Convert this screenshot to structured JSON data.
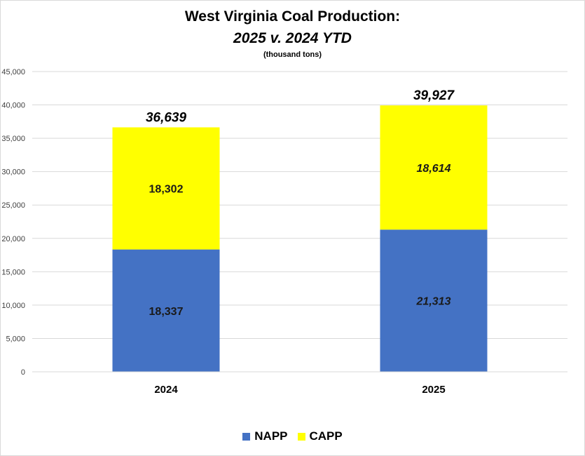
{
  "chart_data": {
    "type": "bar",
    "stacked": true,
    "title": "West Virginia Coal Production:",
    "title_line2": "2025 v. 2024 YTD",
    "subtitle": "(thousand tons)",
    "categories": [
      "2024",
      "2025"
    ],
    "series": [
      {
        "name": "NAPP",
        "color": "#4472c4",
        "values": [
          18337,
          21313
        ],
        "labels": [
          "18,337",
          "21,313"
        ]
      },
      {
        "name": "CAPP",
        "color": "#ffff00",
        "values": [
          18302,
          18614
        ],
        "labels": [
          "18,302",
          "18,614"
        ]
      }
    ],
    "totals": [
      36639,
      39927
    ],
    "total_labels": [
      "36,639",
      "39,927"
    ],
    "ylim": [
      0,
      45000
    ],
    "yticks": [
      0,
      5000,
      10000,
      15000,
      20000,
      25000,
      30000,
      35000,
      40000,
      45000
    ],
    "ytick_labels": [
      "0",
      "5,000",
      "10,000",
      "15,000",
      "20,000",
      "25,000",
      "30,000",
      "35,000",
      "40,000",
      "45,000"
    ],
    "grid": true,
    "legend_position": "bottom"
  }
}
